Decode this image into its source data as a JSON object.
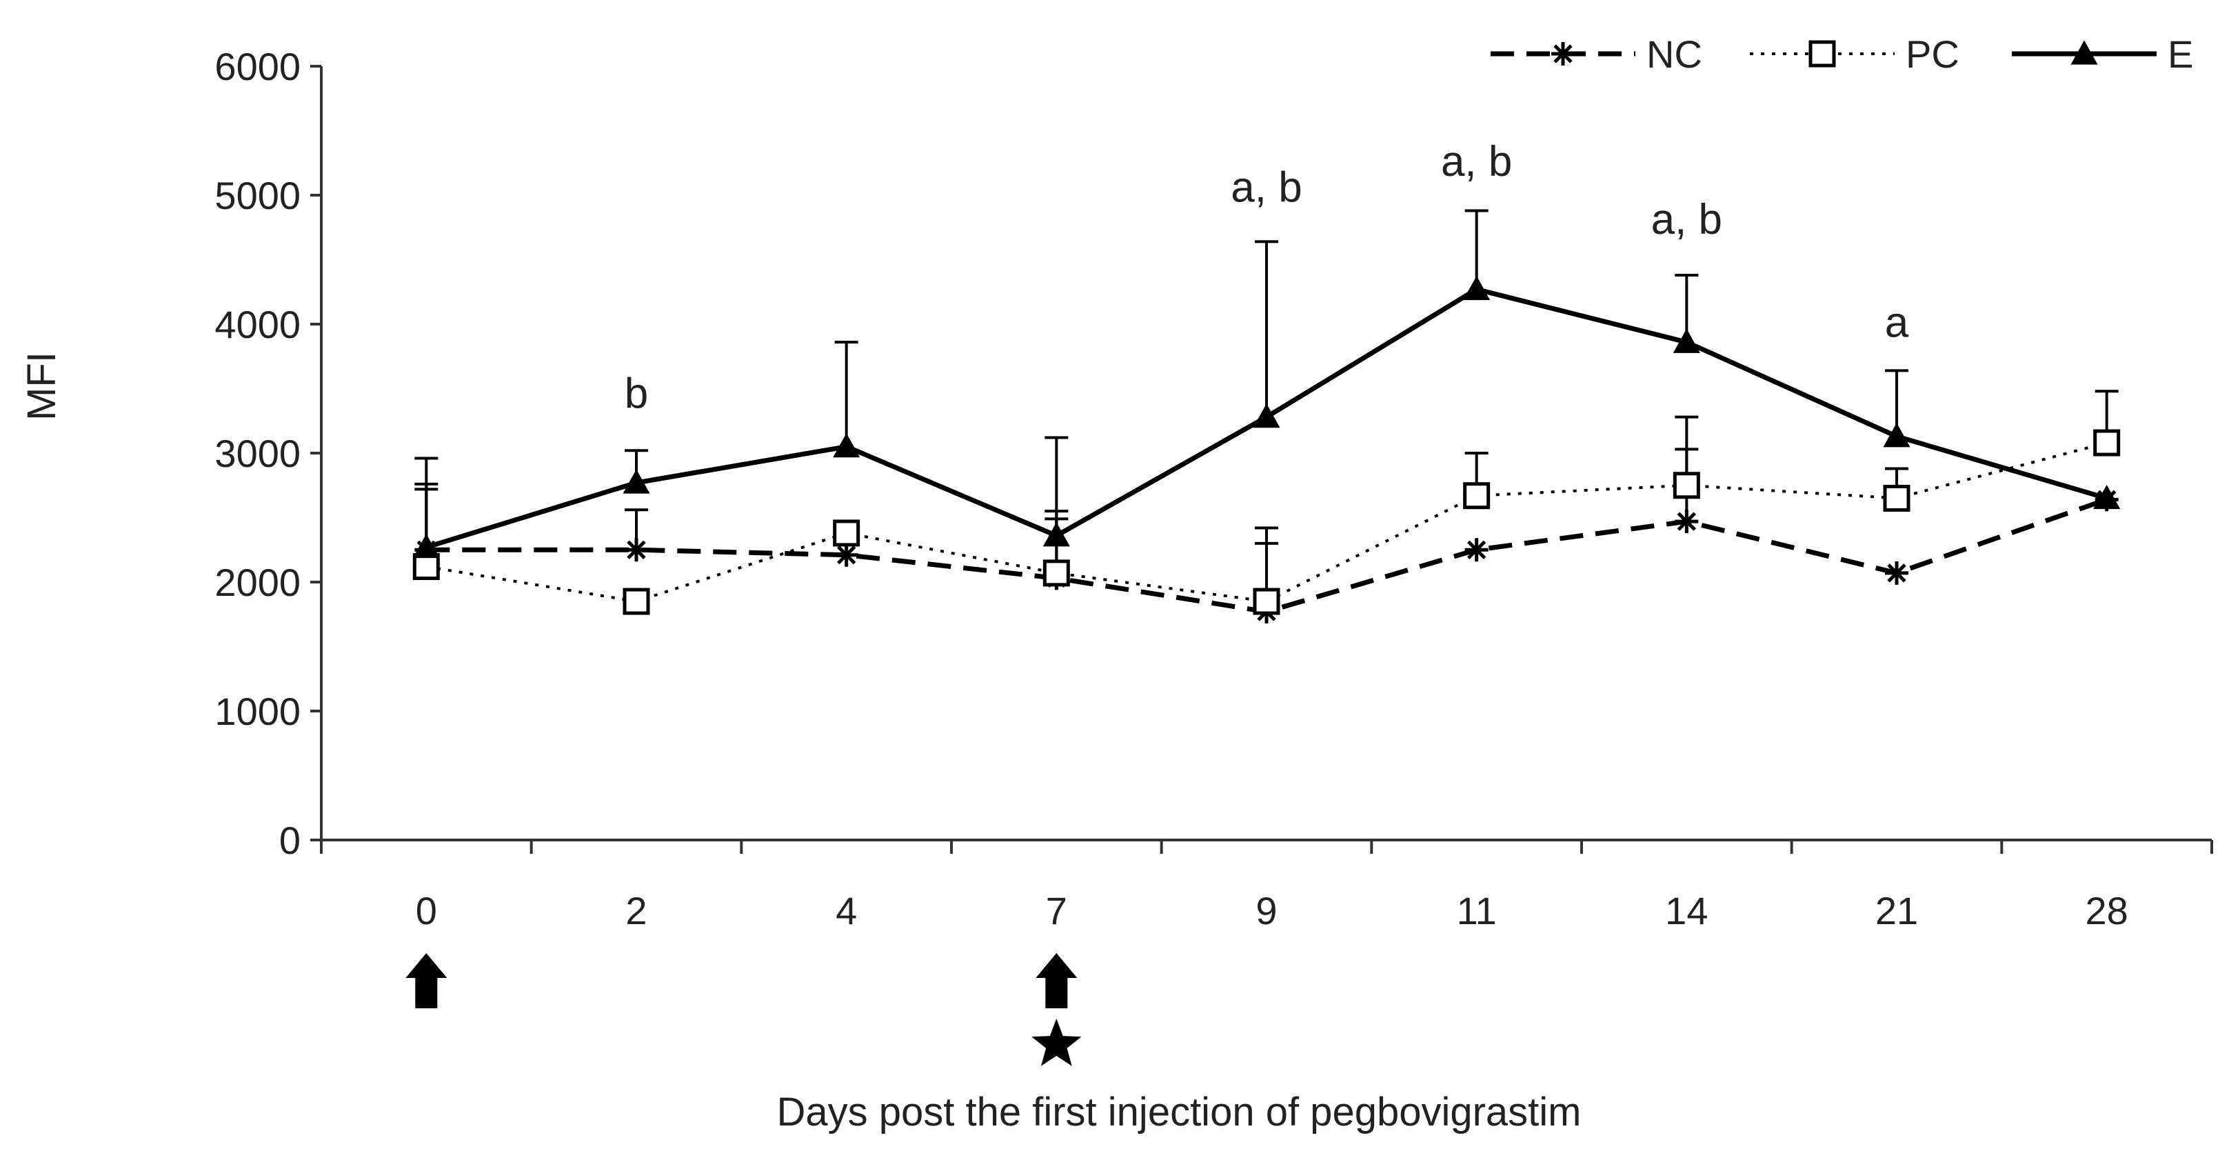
{
  "chart_data": {
    "type": "line",
    "title": "",
    "xlabel": "Days post the first injection of pegbovigrastim",
    "ylabel": "MFI",
    "ylim": [
      0,
      6000
    ],
    "yticks": [
      0,
      1000,
      2000,
      3000,
      4000,
      5000,
      6000
    ],
    "categories": [
      "0",
      "2",
      "4",
      "7",
      "9",
      "11",
      "14",
      "21",
      "28"
    ],
    "legend_position": "top-right",
    "series": [
      {
        "name": "NC",
        "style": "dashed",
        "marker": "asterisk",
        "values": [
          2250,
          2250,
          2210,
          2030,
          1770,
          2250,
          2470,
          2070,
          2640
        ],
        "error_upper": [
          2720,
          2560,
          null,
          2550,
          2300,
          null,
          3030,
          null,
          null
        ]
      },
      {
        "name": "PC",
        "style": "dotted",
        "marker": "open-square",
        "values": [
          2120,
          1850,
          2380,
          2070,
          1850,
          2670,
          2750,
          2650,
          3080
        ],
        "error_upper": [
          2760,
          null,
          null,
          2490,
          2420,
          3000,
          3280,
          2880,
          3480
        ]
      },
      {
        "name": "E",
        "style": "solid",
        "marker": "filled-triangle",
        "values": [
          2270,
          2770,
          3050,
          2360,
          3280,
          4270,
          3860,
          3130,
          2650
        ],
        "error_upper": [
          2960,
          3020,
          3860,
          3120,
          4640,
          4880,
          4380,
          3640,
          null
        ]
      }
    ],
    "annotations": [
      {
        "category": "2",
        "text": "b",
        "y": 3350
      },
      {
        "category": "9",
        "text": "a, b",
        "y": 4950
      },
      {
        "category": "11",
        "text": "a, b",
        "y": 5150
      },
      {
        "category": "14",
        "text": "a, b",
        "y": 4700
      },
      {
        "category": "21",
        "text": "a",
        "y": 3900
      }
    ],
    "injection_markers": [
      "0",
      "7"
    ],
    "star_markers": [
      "7"
    ]
  },
  "colors": {
    "line": "#000000",
    "axis": "#333333",
    "text": "#222222"
  }
}
